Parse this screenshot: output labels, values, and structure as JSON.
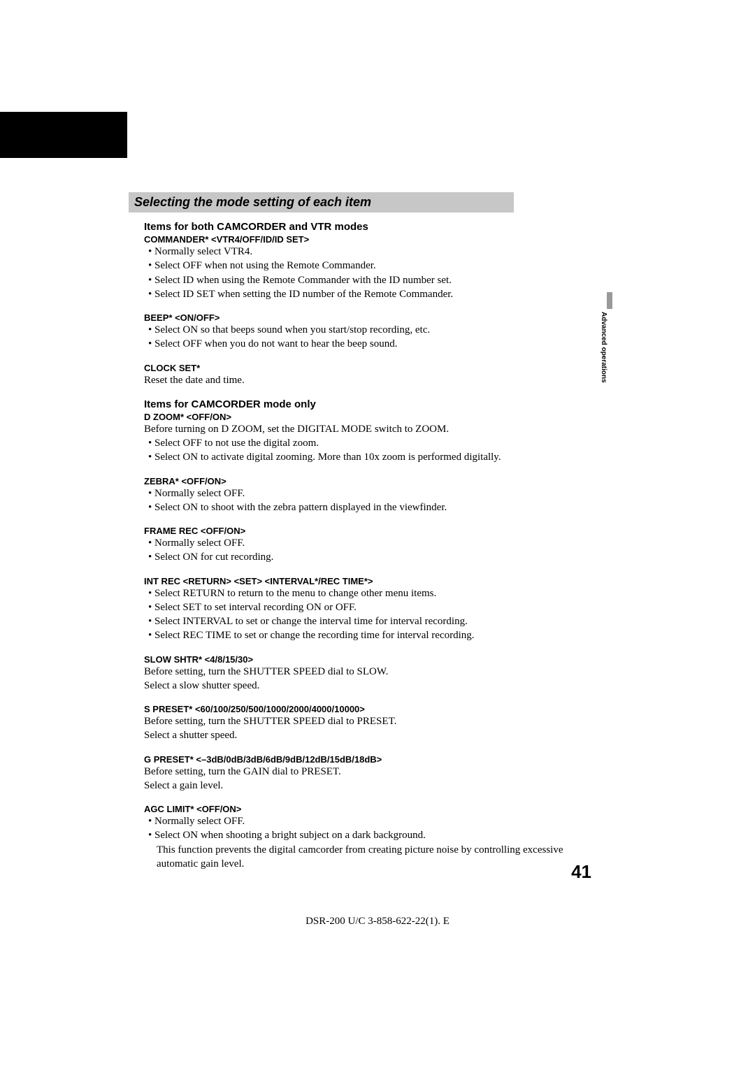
{
  "page": {
    "title": "Selecting the mode setting of each item",
    "side_tab": "Advanced operations",
    "page_number": "41",
    "footer": "DSR-200 U/C 3-858-622-22(1). E"
  },
  "section1": {
    "heading": "Items for both CAMCORDER and VTR modes",
    "commander": {
      "label": "COMMANDER* <VTR4/OFF/ID/ID SET>",
      "b1": "Normally select VTR4.",
      "b2": "Select OFF when not using the Remote Commander.",
      "b3": "Select ID when using the Remote Commander with the ID number set.",
      "b4": "Select ID SET when setting the ID number of the Remote Commander."
    },
    "beep": {
      "label": "BEEP* <ON/OFF>",
      "b1": "Select ON so that beeps sound when you start/stop recording, etc.",
      "b2": "Select OFF when you do not want to hear the beep sound."
    },
    "clock": {
      "label": "CLOCK SET*",
      "text": "Reset the date and time."
    }
  },
  "section2": {
    "heading": "Items for CAMCORDER mode only",
    "dzoom": {
      "label": "D ZOOM* <OFF/ON>",
      "text": "Before turning on D ZOOM, set the DIGITAL MODE switch to ZOOM.",
      "b1": "Select OFF to not use the digital zoom.",
      "b2": "Select ON to activate digital zooming. More than 10x zoom is performed digitally."
    },
    "zebra": {
      "label": "ZEBRA* <OFF/ON>",
      "b1": "Normally select OFF.",
      "b2": "Select ON to shoot with the zebra pattern displayed in the viewfinder."
    },
    "framerec": {
      "label": "FRAME REC <OFF/ON>",
      "b1": "Normally select OFF.",
      "b2": "Select ON for cut recording."
    },
    "intrec": {
      "label": "INT REC <RETURN> <SET> <INTERVAL*/REC TIME*>",
      "b1": "Select RETURN to return to the menu to change other menu items.",
      "b2": "Select SET to set interval recording ON or OFF.",
      "b3": "Select INTERVAL to set or change the interval time for interval recording.",
      "b4": "Select REC TIME to set or change the recording time for interval recording."
    },
    "slowshtr": {
      "label": "SLOW SHTR* <4/8/15/30>",
      "t1": "Before setting, turn the SHUTTER SPEED dial to SLOW.",
      "t2": "Select a slow shutter speed."
    },
    "spreset": {
      "label": "S PRESET* <60/100/250/500/1000/2000/4000/10000>",
      "t1": "Before setting, turn the SHUTTER SPEED dial to PRESET.",
      "t2": "Select a shutter speed."
    },
    "gpreset": {
      "label": "G PRESET* <–3dB/0dB/3dB/6dB/9dB/12dB/15dB/18dB>",
      "t1": "Before setting, turn the GAIN dial to PRESET.",
      "t2": "Select a gain level."
    },
    "agclimit": {
      "label": "AGC LIMIT* <OFF/ON>",
      "b1": "Normally select OFF.",
      "b2a": "Select ON when shooting a bright subject on a dark background.",
      "b2b": "This function prevents the digital camcorder from creating picture noise by controlling excessive automatic gain level."
    }
  }
}
